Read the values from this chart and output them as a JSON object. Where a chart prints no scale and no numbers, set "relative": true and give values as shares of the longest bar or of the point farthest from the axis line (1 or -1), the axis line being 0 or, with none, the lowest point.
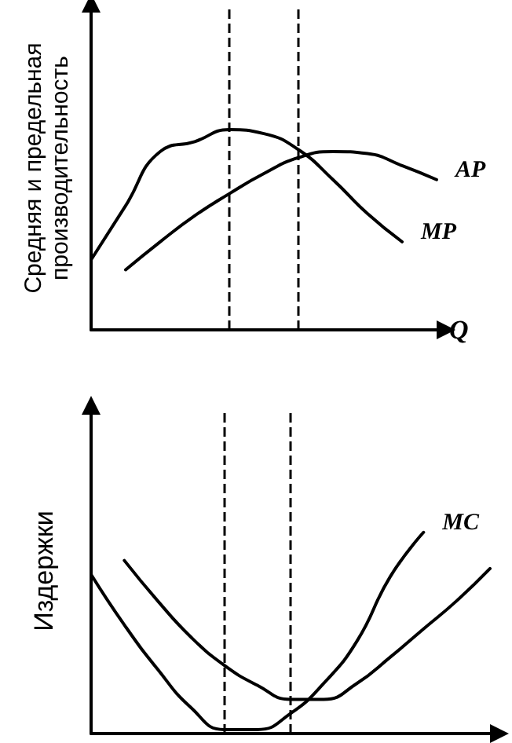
{
  "chart_data": [
    {
      "type": "line",
      "relative": true,
      "ylabel": "Средняя и предельная производительность",
      "xlabel": "Q",
      "categories": [
        null,
        null,
        null,
        null,
        null,
        null,
        null,
        null,
        null,
        null,
        null
      ],
      "legend": false,
      "grid": false,
      "marker": "none",
      "line_style": "solid",
      "series": [
        {
          "name": "MP",
          "color": "#000000",
          "values": [
            0.35,
            0.62,
            0.89,
            0.94,
            1,
            0.98,
            0.9,
            0.75,
            0.58,
            0.44,
            null
          ]
        },
        {
          "name": "AP",
          "color": "#000000",
          "values": [
            null,
            0.3,
            0.44,
            0.57,
            0.68,
            0.78,
            0.86,
            0.89,
            0.88,
            0.82,
            0.75
          ]
        }
      ]
    },
    {
      "type": "line",
      "relative": true,
      "ylabel": "Издержки",
      "categories": [
        null,
        null,
        null,
        null,
        null,
        null,
        null,
        null,
        null,
        null,
        null,
        null,
        null
      ],
      "legend": false,
      "grid": false,
      "marker": "none",
      "line_style": "solid",
      "series": [
        {
          "name": "MC",
          "color": "#000000",
          "values": [
            0.79,
            0.54,
            0.32,
            0.13,
            0.02,
            0.02,
            0.1,
            0.25,
            0.46,
            0.78,
            1,
            null,
            null
          ]
        },
        {
          "color": "#000000",
          "values": [
            null,
            0.86,
            0.66,
            0.48,
            0.34,
            0.24,
            0.17,
            0.17,
            0.25,
            0.38,
            0.52,
            0.66,
            0.82
          ]
        }
      ]
    }
  ]
}
